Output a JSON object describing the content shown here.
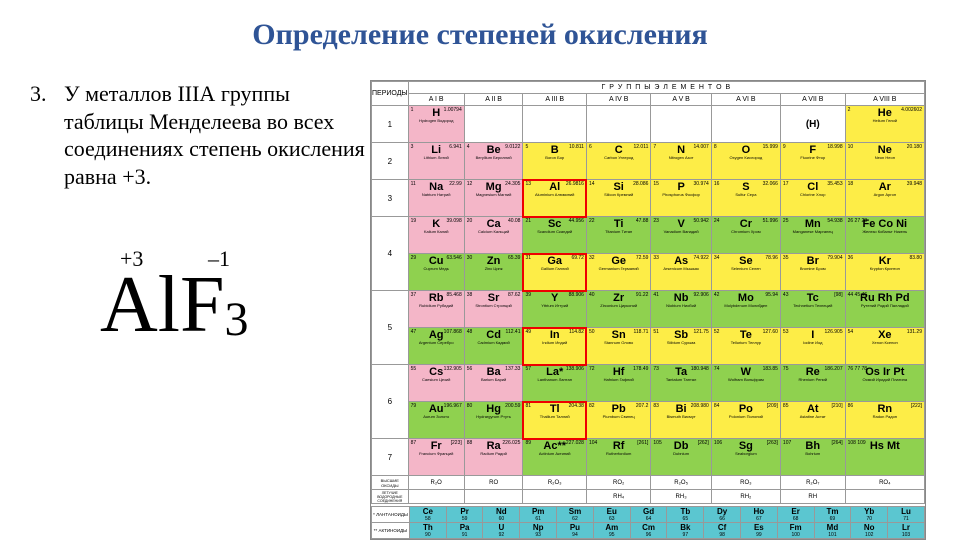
{
  "title": "Определение степеней окисления",
  "rule": {
    "number": "3.",
    "text": "У металлов IIIА группы таблицы Менделеева во всех соединениях степень окисления равна +3."
  },
  "formula": {
    "display_el1": "Al",
    "display_el2": "F",
    "subscript": "3",
    "ox1": "+3",
    "ox2": "–1",
    "font_size_main": 80,
    "font_size_ox": 22
  },
  "periodic_table": {
    "header_periods": "ПЕРИОДЫ",
    "header_groups": "Г   Р   У   П   П   Ы       Э   Л   Е   М   Е   Н   Т   О   В",
    "group_labels": [
      "A I B",
      "A II B",
      "A III B",
      "A IV B",
      "A V B",
      "A VI B",
      "A VII B",
      "A VIII B"
    ],
    "colors": {
      "alkali": "#f4b6c8",
      "nonmetal": "#fded47",
      "transition": "#8fd14f",
      "lanth": "#5bc6d0",
      "bg": "#ffffff",
      "border": "#999999",
      "highlight": "#ee0000"
    },
    "highlighted": [
      "Al",
      "Ga",
      "In",
      "Tl"
    ],
    "oxide_row_label": "ВЫСШИЕ ОКСИДЫ",
    "hydride_row_label": "ЛЕТУЧИЕ ВОДОРОДНЫЕ СОЕДИНЕНИЯ",
    "oxides": [
      "R₂O",
      "RO",
      "R₂O₃",
      "RO₂",
      "R₂O₅",
      "RO₃",
      "R₂O₇",
      "RO₄"
    ],
    "hydrides": [
      "",
      "",
      "",
      "RH₄",
      "RH₃",
      "RH₂",
      "RH",
      ""
    ],
    "lanth_label": "ЛАНТАНОИДЫ",
    "act_label": "АКТИНОИДЫ",
    "periods": [
      {
        "n": "1",
        "rows": [
          [
            {
              "s": "H",
              "z": 1,
              "m": "1.00794",
              "nm": "Hydrogen Водород",
              "c": "c-pink"
            },
            null,
            null,
            null,
            null,
            null,
            {
              "s": "(H)",
              "c": "c-white",
              "plain": true
            },
            {
              "s": "He",
              "z": 2,
              "m": "4.002602",
              "nm": "Helium Гелий",
              "c": "c-yellow"
            }
          ]
        ]
      },
      {
        "n": "2",
        "rows": [
          [
            {
              "s": "Li",
              "z": 3,
              "m": "6.941",
              "nm": "Lithium Литий",
              "c": "c-pink"
            },
            {
              "s": "Be",
              "z": 4,
              "m": "9.0122",
              "nm": "Beryllium Бериллий",
              "c": "c-pink"
            },
            {
              "s": "B",
              "z": 5,
              "m": "10.811",
              "nm": "Boron Бор",
              "c": "c-yellow"
            },
            {
              "s": "C",
              "z": 6,
              "m": "12.011",
              "nm": "Carbon Углерод",
              "c": "c-yellow"
            },
            {
              "s": "N",
              "z": 7,
              "m": "14.007",
              "nm": "Nitrogen Азот",
              "c": "c-yellow"
            },
            {
              "s": "O",
              "z": 8,
              "m": "15.999",
              "nm": "Oxygen Кислород",
              "c": "c-yellow"
            },
            {
              "s": "F",
              "z": 9,
              "m": "18.998",
              "nm": "Fluorine Фтор",
              "c": "c-yellow"
            },
            {
              "s": "Ne",
              "z": 10,
              "m": "20.180",
              "nm": "Neon Неон",
              "c": "c-yellow"
            }
          ]
        ]
      },
      {
        "n": "3",
        "rows": [
          [
            {
              "s": "Na",
              "z": 11,
              "m": "22.99",
              "nm": "Natrium Натрий",
              "c": "c-pink"
            },
            {
              "s": "Mg",
              "z": 12,
              "m": "24.305",
              "nm": "Magnesium Магний",
              "c": "c-pink"
            },
            {
              "s": "Al",
              "z": 13,
              "m": "26.9816",
              "nm": "Aluminium Алюминий",
              "c": "c-yellow"
            },
            {
              "s": "Si",
              "z": 14,
              "m": "28.086",
              "nm": "Silicon Кремний",
              "c": "c-yellow"
            },
            {
              "s": "P",
              "z": 15,
              "m": "30.974",
              "nm": "Phosphorus Фосфор",
              "c": "c-yellow"
            },
            {
              "s": "S",
              "z": 16,
              "m": "32.066",
              "nm": "Sulfur Сера",
              "c": "c-yellow"
            },
            {
              "s": "Cl",
              "z": 17,
              "m": "35.453",
              "nm": "Chlorine Хлор",
              "c": "c-yellow"
            },
            {
              "s": "Ar",
              "z": 18,
              "m": "39.948",
              "nm": "Argon Аргон",
              "c": "c-yellow"
            }
          ]
        ]
      },
      {
        "n": "4",
        "rows": [
          [
            {
              "s": "K",
              "z": 19,
              "m": "39.098",
              "nm": "Kalium Калий",
              "c": "c-pink"
            },
            {
              "s": "Ca",
              "z": 20,
              "m": "40.08",
              "nm": "Calcium Кальций",
              "c": "c-pink"
            },
            {
              "s": "Sc",
              "z": 21,
              "m": "44.956",
              "nm": "Scandium Скандий",
              "c": "c-green"
            },
            {
              "s": "Ti",
              "z": 22,
              "m": "47.88",
              "nm": "Titanium Титан",
              "c": "c-green"
            },
            {
              "s": "V",
              "z": 23,
              "m": "50.942",
              "nm": "Vanadium Ванадий",
              "c": "c-green"
            },
            {
              "s": "Cr",
              "z": 24,
              "m": "51.996",
              "nm": "Chromium Хром",
              "c": "c-green"
            },
            {
              "s": "Mn",
              "z": 25,
              "m": "54.938",
              "nm": "Manganese Марганец",
              "c": "c-green"
            },
            {
              "s": "Fe Co Ni",
              "z": "26 27 28",
              "m": "",
              "nm": "Железо Кобальт Никель",
              "c": "c-green",
              "triple": true
            }
          ],
          [
            {
              "s": "Cu",
              "z": 29,
              "m": "63.546",
              "nm": "Cuprum Медь",
              "c": "c-green"
            },
            {
              "s": "Zn",
              "z": 30,
              "m": "65.39",
              "nm": "Zinc Цинк",
              "c": "c-green"
            },
            {
              "s": "Ga",
              "z": 31,
              "m": "69.72",
              "nm": "Gallium Галлий",
              "c": "c-yellow"
            },
            {
              "s": "Ge",
              "z": 32,
              "m": "72.59",
              "nm": "Germanium Германий",
              "c": "c-yellow"
            },
            {
              "s": "As",
              "z": 33,
              "m": "74.922",
              "nm": "Arsenicum Мышьяк",
              "c": "c-yellow"
            },
            {
              "s": "Se",
              "z": 34,
              "m": "78.96",
              "nm": "Selenium Селен",
              "c": "c-yellow"
            },
            {
              "s": "Br",
              "z": 35,
              "m": "79.904",
              "nm": "Bromine Бром",
              "c": "c-yellow"
            },
            {
              "s": "Kr",
              "z": 36,
              "m": "83.80",
              "nm": "Krypton Криптон",
              "c": "c-yellow"
            }
          ]
        ]
      },
      {
        "n": "5",
        "rows": [
          [
            {
              "s": "Rb",
              "z": 37,
              "m": "85.468",
              "nm": "Rubidium Рубидий",
              "c": "c-pink"
            },
            {
              "s": "Sr",
              "z": 38,
              "m": "87.62",
              "nm": "Strontium Стронций",
              "c": "c-pink"
            },
            {
              "s": "Y",
              "z": 39,
              "m": "88.906",
              "nm": "Yttrium Иттрий",
              "c": "c-green"
            },
            {
              "s": "Zr",
              "z": 40,
              "m": "91.22",
              "nm": "Zirconium Цирконий",
              "c": "c-green"
            },
            {
              "s": "Nb",
              "z": 41,
              "m": "92.906",
              "nm": "Niobium Ниобий",
              "c": "c-green"
            },
            {
              "s": "Mo",
              "z": 42,
              "m": "95.94",
              "nm": "Molybdenum Молибден",
              "c": "c-green"
            },
            {
              "s": "Tc",
              "z": 43,
              "m": "[98]",
              "nm": "Technetium Технеций",
              "c": "c-green"
            },
            {
              "s": "Ru Rh Pd",
              "z": "44 45 46",
              "m": "",
              "nm": "Рутений Родий Палладий",
              "c": "c-green",
              "triple": true
            }
          ],
          [
            {
              "s": "Ag",
              "z": 47,
              "m": "107.868",
              "nm": "Argentum Серебро",
              "c": "c-green"
            },
            {
              "s": "Cd",
              "z": 48,
              "m": "112.41",
              "nm": "Cadmium Кадмий",
              "c": "c-green"
            },
            {
              "s": "In",
              "z": 49,
              "m": "114.82",
              "nm": "Indium Индий",
              "c": "c-yellow"
            },
            {
              "s": "Sn",
              "z": 50,
              "m": "118.71",
              "nm": "Stannum Олово",
              "c": "c-yellow"
            },
            {
              "s": "Sb",
              "z": 51,
              "m": "121.75",
              "nm": "Stibium Сурьма",
              "c": "c-yellow"
            },
            {
              "s": "Te",
              "z": 52,
              "m": "127.60",
              "nm": "Tellurium Теллур",
              "c": "c-yellow"
            },
            {
              "s": "I",
              "z": 53,
              "m": "126.905",
              "nm": "Iodine Иод",
              "c": "c-yellow"
            },
            {
              "s": "Xe",
              "z": 54,
              "m": "131.29",
              "nm": "Xenon Ксенон",
              "c": "c-yellow"
            }
          ]
        ]
      },
      {
        "n": "6",
        "rows": [
          [
            {
              "s": "Cs",
              "z": 55,
              "m": "132.905",
              "nm": "Caesium Цезий",
              "c": "c-pink"
            },
            {
              "s": "Ba",
              "z": 56,
              "m": "137.33",
              "nm": "Barium Барий",
              "c": "c-pink"
            },
            {
              "s": "La*",
              "z": 57,
              "m": "138.906",
              "nm": "Lanthanum Лантан",
              "c": "c-green"
            },
            {
              "s": "Hf",
              "z": 72,
              "m": "178.49",
              "nm": "Hafnium Гафний",
              "c": "c-green"
            },
            {
              "s": "Ta",
              "z": 73,
              "m": "180.948",
              "nm": "Tantalum Тантал",
              "c": "c-green"
            },
            {
              "s": "W",
              "z": 74,
              "m": "183.85",
              "nm": "Wolfram Вольфрам",
              "c": "c-green"
            },
            {
              "s": "Re",
              "z": 75,
              "m": "186.207",
              "nm": "Rhenium Рений",
              "c": "c-green"
            },
            {
              "s": "Os Ir Pt",
              "z": "76 77 78",
              "m": "",
              "nm": "Осмий Иридий Платина",
              "c": "c-green",
              "triple": true
            }
          ],
          [
            {
              "s": "Au",
              "z": 79,
              "m": "196.967",
              "nm": "Aurum Золото",
              "c": "c-green"
            },
            {
              "s": "Hg",
              "z": 80,
              "m": "200.59",
              "nm": "Hydrargyrum Ртуть",
              "c": "c-green"
            },
            {
              "s": "Tl",
              "z": 81,
              "m": "204.38",
              "nm": "Thallium Таллий",
              "c": "c-yellow"
            },
            {
              "s": "Pb",
              "z": 82,
              "m": "207.2",
              "nm": "Plumbum Свинец",
              "c": "c-yellow"
            },
            {
              "s": "Bi",
              "z": 83,
              "m": "208.980",
              "nm": "Bismuth Висмут",
              "c": "c-yellow"
            },
            {
              "s": "Po",
              "z": 84,
              "m": "[209]",
              "nm": "Polonium Полоний",
              "c": "c-yellow"
            },
            {
              "s": "At",
              "z": 85,
              "m": "[210]",
              "nm": "Astatine Астат",
              "c": "c-yellow"
            },
            {
              "s": "Rn",
              "z": 86,
              "m": "[222]",
              "nm": "Radon Радон",
              "c": "c-yellow"
            }
          ]
        ]
      },
      {
        "n": "7",
        "rows": [
          [
            {
              "s": "Fr",
              "z": 87,
              "m": "[223]",
              "nm": "Francium Франций",
              "c": "c-pink"
            },
            {
              "s": "Ra",
              "z": 88,
              "m": "226.025",
              "nm": "Radium Радий",
              "c": "c-pink"
            },
            {
              "s": "Ac**",
              "z": 89,
              "m": "227.028",
              "nm": "Actinium Актиний",
              "c": "c-green"
            },
            {
              "s": "Rf",
              "z": 104,
              "m": "[261]",
              "nm": "Rutherfordium",
              "c": "c-green"
            },
            {
              "s": "Db",
              "z": 105,
              "m": "[262]",
              "nm": "Dubnium",
              "c": "c-green"
            },
            {
              "s": "Sg",
              "z": 106,
              "m": "[263]",
              "nm": "Seaborgium",
              "c": "c-green"
            },
            {
              "s": "Bh",
              "z": 107,
              "m": "[264]",
              "nm": "Bohrium",
              "c": "c-green"
            },
            {
              "s": "Hs Mt",
              "z": "108 109",
              "m": "",
              "nm": "",
              "c": "c-green",
              "triple": true
            }
          ]
        ]
      }
    ],
    "lanthanides": [
      {
        "s": "Ce",
        "z": 58
      },
      {
        "s": "Pr",
        "z": 59
      },
      {
        "s": "Nd",
        "z": 60
      },
      {
        "s": "Pm",
        "z": 61
      },
      {
        "s": "Sm",
        "z": 62
      },
      {
        "s": "Eu",
        "z": 63
      },
      {
        "s": "Gd",
        "z": 64
      },
      {
        "s": "Tb",
        "z": 65
      },
      {
        "s": "Dy",
        "z": 66
      },
      {
        "s": "Ho",
        "z": 67
      },
      {
        "s": "Er",
        "z": 68
      },
      {
        "s": "Tm",
        "z": 69
      },
      {
        "s": "Yb",
        "z": 70
      },
      {
        "s": "Lu",
        "z": 71
      }
    ],
    "actinides": [
      {
        "s": "Th",
        "z": 90
      },
      {
        "s": "Pa",
        "z": 91
      },
      {
        "s": "U",
        "z": 92
      },
      {
        "s": "Np",
        "z": 93
      },
      {
        "s": "Pu",
        "z": 94
      },
      {
        "s": "Am",
        "z": 95
      },
      {
        "s": "Cm",
        "z": 96
      },
      {
        "s": "Bk",
        "z": 97
      },
      {
        "s": "Cf",
        "z": 98
      },
      {
        "s": "Es",
        "z": 99
      },
      {
        "s": "Fm",
        "z": 100
      },
      {
        "s": "Md",
        "z": 101
      },
      {
        "s": "No",
        "z": 102
      },
      {
        "s": "Lr",
        "z": 103
      }
    ]
  }
}
